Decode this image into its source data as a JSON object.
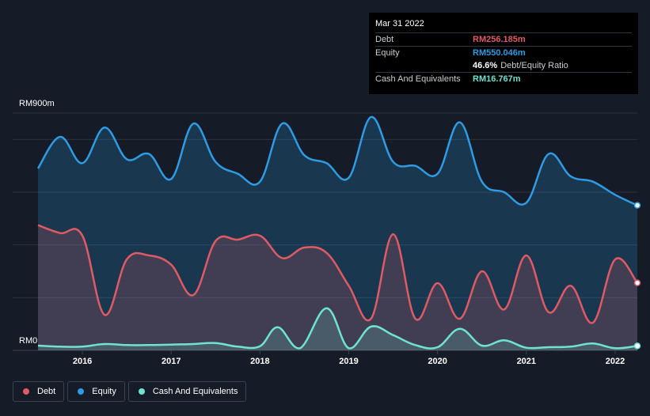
{
  "colors": {
    "debt": "#e05a66",
    "equity": "#2f9be3",
    "cash": "#6fe3cf",
    "background": "#151b27"
  },
  "y_axis": {
    "top_label": "RM900m",
    "bottom_label": "RM0"
  },
  "tooltip": {
    "date": "Mar 31 2022",
    "rows": [
      {
        "key": "Debt",
        "value": "RM256.185m",
        "color": "#e05a66"
      },
      {
        "key": "Equity",
        "value": "RM550.046m",
        "color": "#2f9be3"
      },
      {
        "key": "",
        "value": "46.6%",
        "value_suffix": "Debt/Equity Ratio",
        "color": "#ffffff"
      },
      {
        "key": "Cash And Equivalents",
        "value": "RM16.767m",
        "color": "#6fe3cf"
      }
    ]
  },
  "legend": [
    {
      "label": "Debt",
      "color": "#e05a66"
    },
    {
      "label": "Equity",
      "color": "#2f9be3"
    },
    {
      "label": "Cash And Equivalents",
      "color": "#6fe3cf"
    }
  ],
  "chart_data": {
    "type": "area",
    "ylim": [
      0,
      900
    ],
    "x_ticks": [
      "2016",
      "2017",
      "2018",
      "2019",
      "2020",
      "2021",
      "2022"
    ],
    "x_range": [
      2015.5,
      2022.25
    ],
    "series": [
      {
        "name": "Equity",
        "color": "#2f9be3",
        "x": [
          2015.5,
          2015.75,
          2016.0,
          2016.25,
          2016.5,
          2016.75,
          2017.0,
          2017.25,
          2017.5,
          2017.75,
          2018.0,
          2018.25,
          2018.5,
          2018.75,
          2019.0,
          2019.25,
          2019.5,
          2019.75,
          2020.0,
          2020.25,
          2020.5,
          2020.75,
          2021.0,
          2021.25,
          2021.5,
          2021.75,
          2022.0,
          2022.25
        ],
        "values": [
          690,
          810,
          710,
          845,
          725,
          745,
          650,
          860,
          715,
          670,
          640,
          860,
          740,
          710,
          655,
          885,
          715,
          700,
          670,
          865,
          640,
          600,
          560,
          745,
          660,
          640,
          590,
          550
        ]
      },
      {
        "name": "Debt",
        "color": "#e05a66",
        "x": [
          2015.5,
          2015.75,
          2016.0,
          2016.25,
          2016.5,
          2016.75,
          2017.0,
          2017.25,
          2017.5,
          2017.75,
          2018.0,
          2018.25,
          2018.5,
          2018.75,
          2019.0,
          2019.25,
          2019.5,
          2019.75,
          2020.0,
          2020.25,
          2020.5,
          2020.75,
          2021.0,
          2021.25,
          2021.5,
          2021.75,
          2022.0,
          2022.25
        ],
        "values": [
          475,
          445,
          435,
          135,
          345,
          360,
          325,
          210,
          415,
          420,
          435,
          350,
          390,
          370,
          245,
          120,
          440,
          120,
          255,
          120,
          300,
          155,
          360,
          145,
          245,
          105,
          345,
          256
        ]
      },
      {
        "name": "Cash And Equivalents",
        "color": "#6fe3cf",
        "x": [
          2015.5,
          2015.75,
          2016.0,
          2016.25,
          2016.5,
          2016.75,
          2017.0,
          2017.25,
          2017.5,
          2017.75,
          2018.0,
          2018.2,
          2018.45,
          2018.75,
          2019.0,
          2019.25,
          2019.5,
          2019.75,
          2020.0,
          2020.25,
          2020.5,
          2020.75,
          2021.0,
          2021.25,
          2021.5,
          2021.75,
          2022.0,
          2022.25
        ],
        "values": [
          18,
          14,
          14,
          24,
          20,
          20,
          22,
          24,
          28,
          14,
          16,
          88,
          8,
          160,
          8,
          90,
          58,
          20,
          12,
          82,
          18,
          38,
          10,
          12,
          14,
          26,
          8,
          17
        ]
      }
    ]
  }
}
